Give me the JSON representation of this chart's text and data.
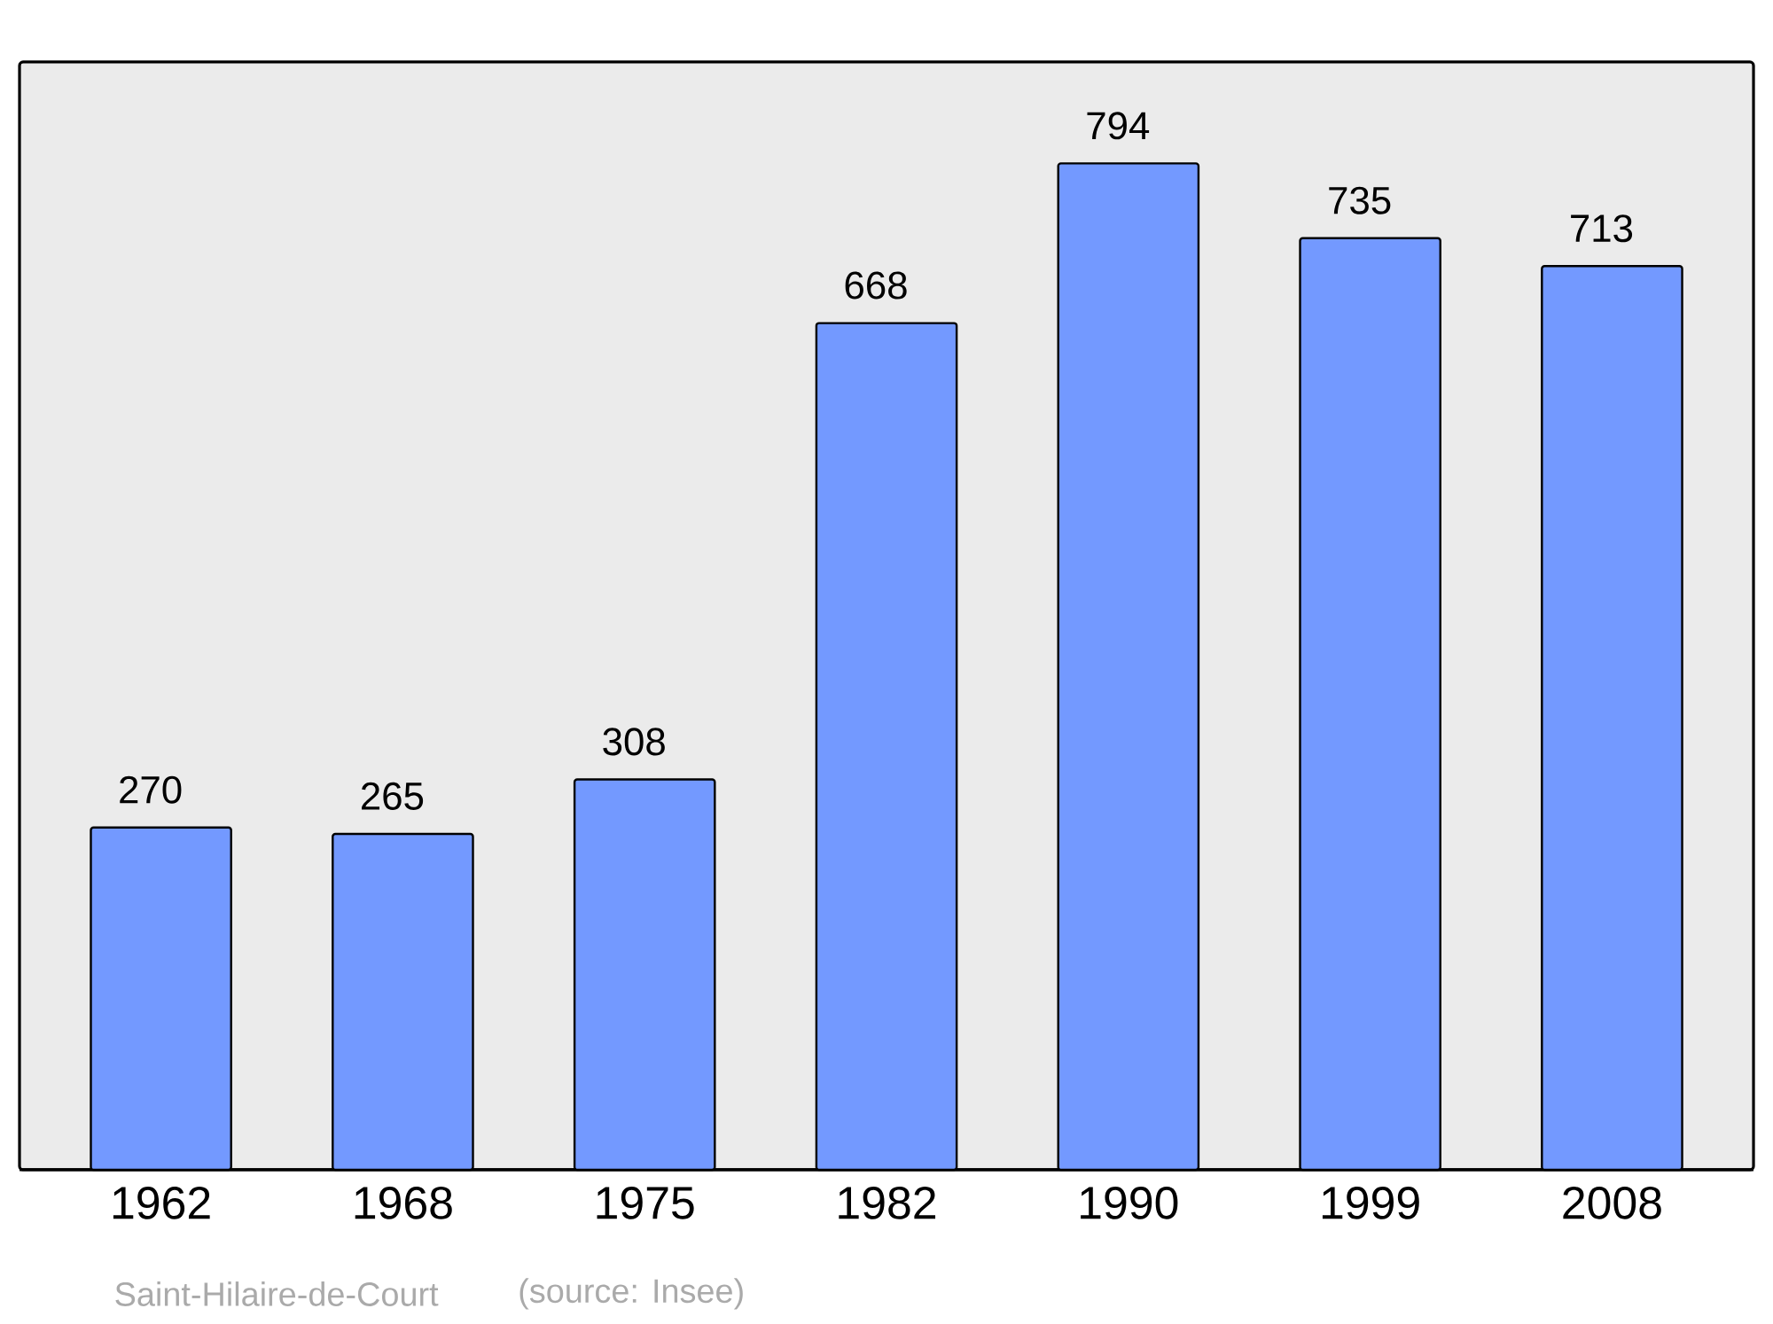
{
  "chart_data": {
    "type": "bar",
    "categories": [
      "1962",
      "1968",
      "1975",
      "1982",
      "1990",
      "1999",
      "2008"
    ],
    "values": [
      270,
      265,
      308,
      668,
      794,
      735,
      713
    ],
    "color": "#7399ff",
    "ylim": [
      0,
      874
    ],
    "data_labels": true,
    "annotations": [
      "Saint-Hilaire-de-Court",
      "(source: Insee)"
    ]
  }
}
